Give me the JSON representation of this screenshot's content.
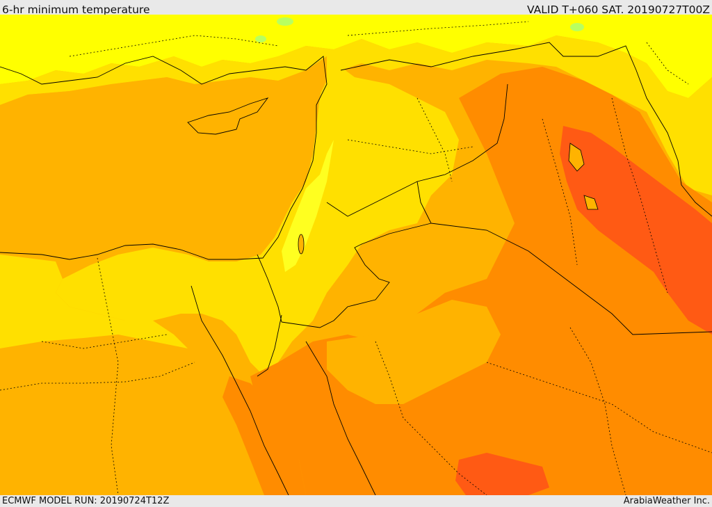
{
  "header": {
    "title": "6-hr minimum temperature",
    "valid": "VALID T+060 SAT. 20190727T00Z"
  },
  "footer": {
    "model_run": "ECMWF MODEL RUN: 20190724T12Z",
    "credit": "ArabiaWeather Inc."
  },
  "palette": {
    "pale_yellow": "#ffff00",
    "yellow": "#ffe000",
    "light_orange": "#ffb300",
    "orange": "#ff8c00",
    "dark_orange": "#ff5a14",
    "light_green": "#b8ff60",
    "border_line": "#000000"
  }
}
